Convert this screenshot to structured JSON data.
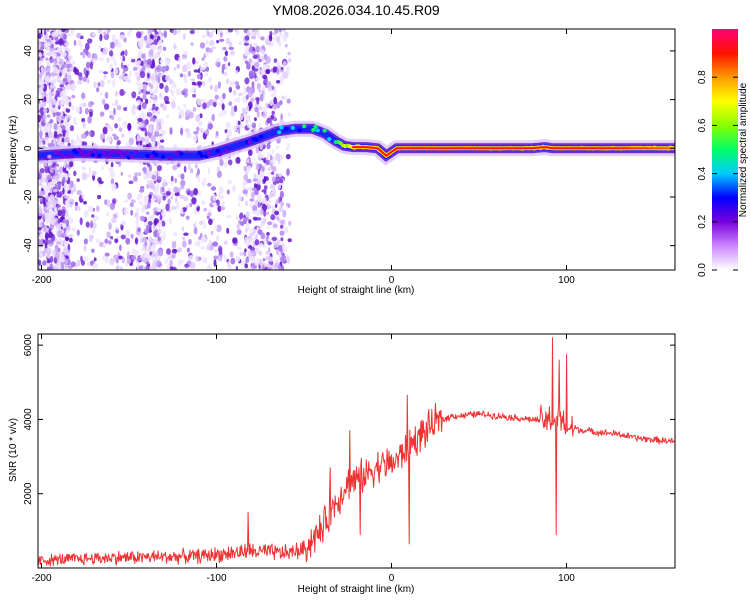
{
  "figure_title": "YM08.2026.034.10.45.R09",
  "colors": {
    "snr_line": "#ee3333",
    "frame": "#000000",
    "spectrum_scatter": "#9966ee"
  },
  "chart_data": [
    {
      "type": "heatmap",
      "name": "spectrogram",
      "title": "YM08.2026.034.10.45.R09",
      "xlabel": "Height of straight line (km)",
      "ylabel": "Frequency (Hz)",
      "xlim": [
        -202,
        162
      ],
      "ylim": [
        -50,
        49
      ],
      "xticks": [
        -200,
        -100,
        0,
        100
      ],
      "yticks": [
        -40,
        -20,
        0,
        20,
        40
      ],
      "xtick_labels": [
        "-200",
        "-100",
        "0",
        "100"
      ],
      "ytick_labels": [
        "-40",
        "-20",
        "0",
        "20",
        "40"
      ],
      "ridge_frequency": {
        "x": [
          -202,
          -180,
          -150,
          -130,
          -110,
          -100,
          -80,
          -65,
          -55,
          -45,
          -38,
          -32,
          -27,
          -22,
          -15,
          -8,
          -3,
          3,
          10,
          40,
          80,
          88,
          92,
          98,
          130,
          162
        ],
        "hz": [
          -3,
          -2,
          -2.5,
          -3,
          -3,
          -1.5,
          3,
          7,
          8,
          8,
          6,
          3,
          1,
          0.5,
          0.5,
          0,
          -3,
          0,
          0,
          0,
          0,
          0.5,
          0,
          0,
          0,
          0
        ],
        "amplitude": [
          0.2,
          0.25,
          0.25,
          0.3,
          0.3,
          0.35,
          0.35,
          0.4,
          0.45,
          0.5,
          0.55,
          0.6,
          0.65,
          0.75,
          0.85,
          0.9,
          0.95,
          1.0,
          1.0,
          1.0,
          0.85,
          0.8,
          0.85,
          0.95,
          0.9,
          0.8
        ]
      },
      "colorbar": {
        "label": "Normalized spectral amplitude",
        "range": [
          0,
          1
        ],
        "ticks": [
          0.0,
          0.2,
          0.4,
          0.6,
          0.8
        ],
        "tick_labels": [
          "0.0",
          "0.2",
          "0.4",
          "0.6",
          "0.8"
        ]
      }
    },
    {
      "type": "line",
      "name": "snr",
      "xlabel": "Height of straight line (km)",
      "ylabel": "SNR (10 * v/v)",
      "xlim": [
        -202,
        162
      ],
      "ylim": [
        0,
        6300
      ],
      "xticks": [
        -200,
        -100,
        0,
        100
      ],
      "yticks": [
        2000,
        4000,
        6000
      ],
      "xtick_labels": [
        "-200",
        "-100",
        "0",
        "100"
      ],
      "ytick_labels": [
        "2000",
        "4000",
        "6000"
      ],
      "series": [
        {
          "name": "SNR",
          "x": [
            -202,
            -160,
            -130,
            -110,
            -80,
            -60,
            -50,
            -45,
            -40,
            -35,
            -30,
            -25,
            -20,
            -15,
            -10,
            -5,
            0,
            5,
            10,
            15,
            20,
            25,
            30,
            35,
            40,
            50,
            60,
            70,
            80,
            88,
            92,
            96,
            100,
            110,
            120,
            130,
            140,
            150,
            162
          ],
          "y": [
            200,
            280,
            300,
            320,
            450,
            400,
            500,
            800,
            1000,
            1500,
            1900,
            2300,
            2400,
            2500,
            2700,
            2800,
            2800,
            3000,
            3300,
            3500,
            3700,
            3900,
            4000,
            4100,
            4100,
            4150,
            4100,
            4050,
            4000,
            3950,
            4000,
            3950,
            3800,
            3700,
            3650,
            3600,
            3500,
            3450,
            3400
          ]
        }
      ],
      "spikes": [
        {
          "x": -82,
          "y": 1500
        },
        {
          "x": -35,
          "y": 2700
        },
        {
          "x": -24,
          "y": 3700
        },
        {
          "x": -18,
          "y": 900
        },
        {
          "x": 9,
          "y": 4650
        },
        {
          "x": 10,
          "y": 650
        },
        {
          "x": 92,
          "y": 6200
        },
        {
          "x": 94,
          "y": 900
        },
        {
          "x": 96,
          "y": 5600
        },
        {
          "x": 100,
          "y": 5750
        }
      ]
    }
  ]
}
